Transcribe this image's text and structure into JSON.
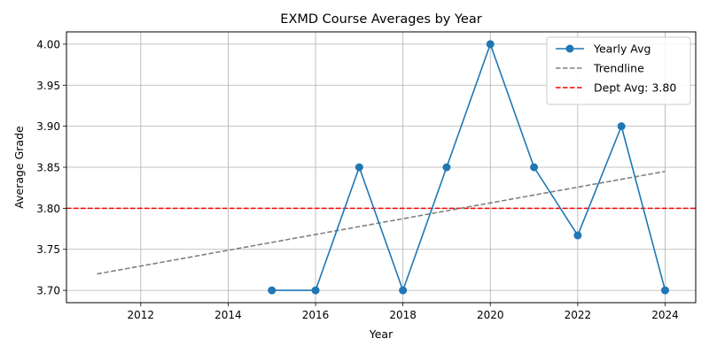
{
  "chart_data": {
    "type": "line",
    "title": "EXMD Course Averages by Year",
    "xlabel": "Year",
    "ylabel": "Average Grade",
    "xlim": [
      2010.3,
      2024.7
    ],
    "ylim": [
      3.685,
      4.015
    ],
    "xticks": [
      2012,
      2014,
      2016,
      2018,
      2020,
      2022,
      2024
    ],
    "yticks": [
      3.7,
      3.75,
      3.8,
      3.85,
      3.9,
      3.95,
      4.0
    ],
    "grid": true,
    "legend_position": "top-right",
    "series": [
      {
        "name": "Yearly Avg",
        "style": "solid line with circle markers",
        "color": "#1f77b4",
        "x": [
          2015,
          2016,
          2017,
          2018,
          2019,
          2020,
          2021,
          2022,
          2023,
          2024
        ],
        "y": [
          3.7,
          3.7,
          3.85,
          3.7,
          3.85,
          4.0,
          3.85,
          3.767,
          3.9,
          3.7
        ]
      },
      {
        "name": "Trendline",
        "style": "dashed",
        "color": "#808080",
        "x": [
          2011,
          2024
        ],
        "y": [
          3.72,
          3.845
        ]
      },
      {
        "name": "Dept Avg: 3.80",
        "style": "dashed horizontal",
        "color": "#ff0000",
        "y": 3.8
      }
    ]
  }
}
